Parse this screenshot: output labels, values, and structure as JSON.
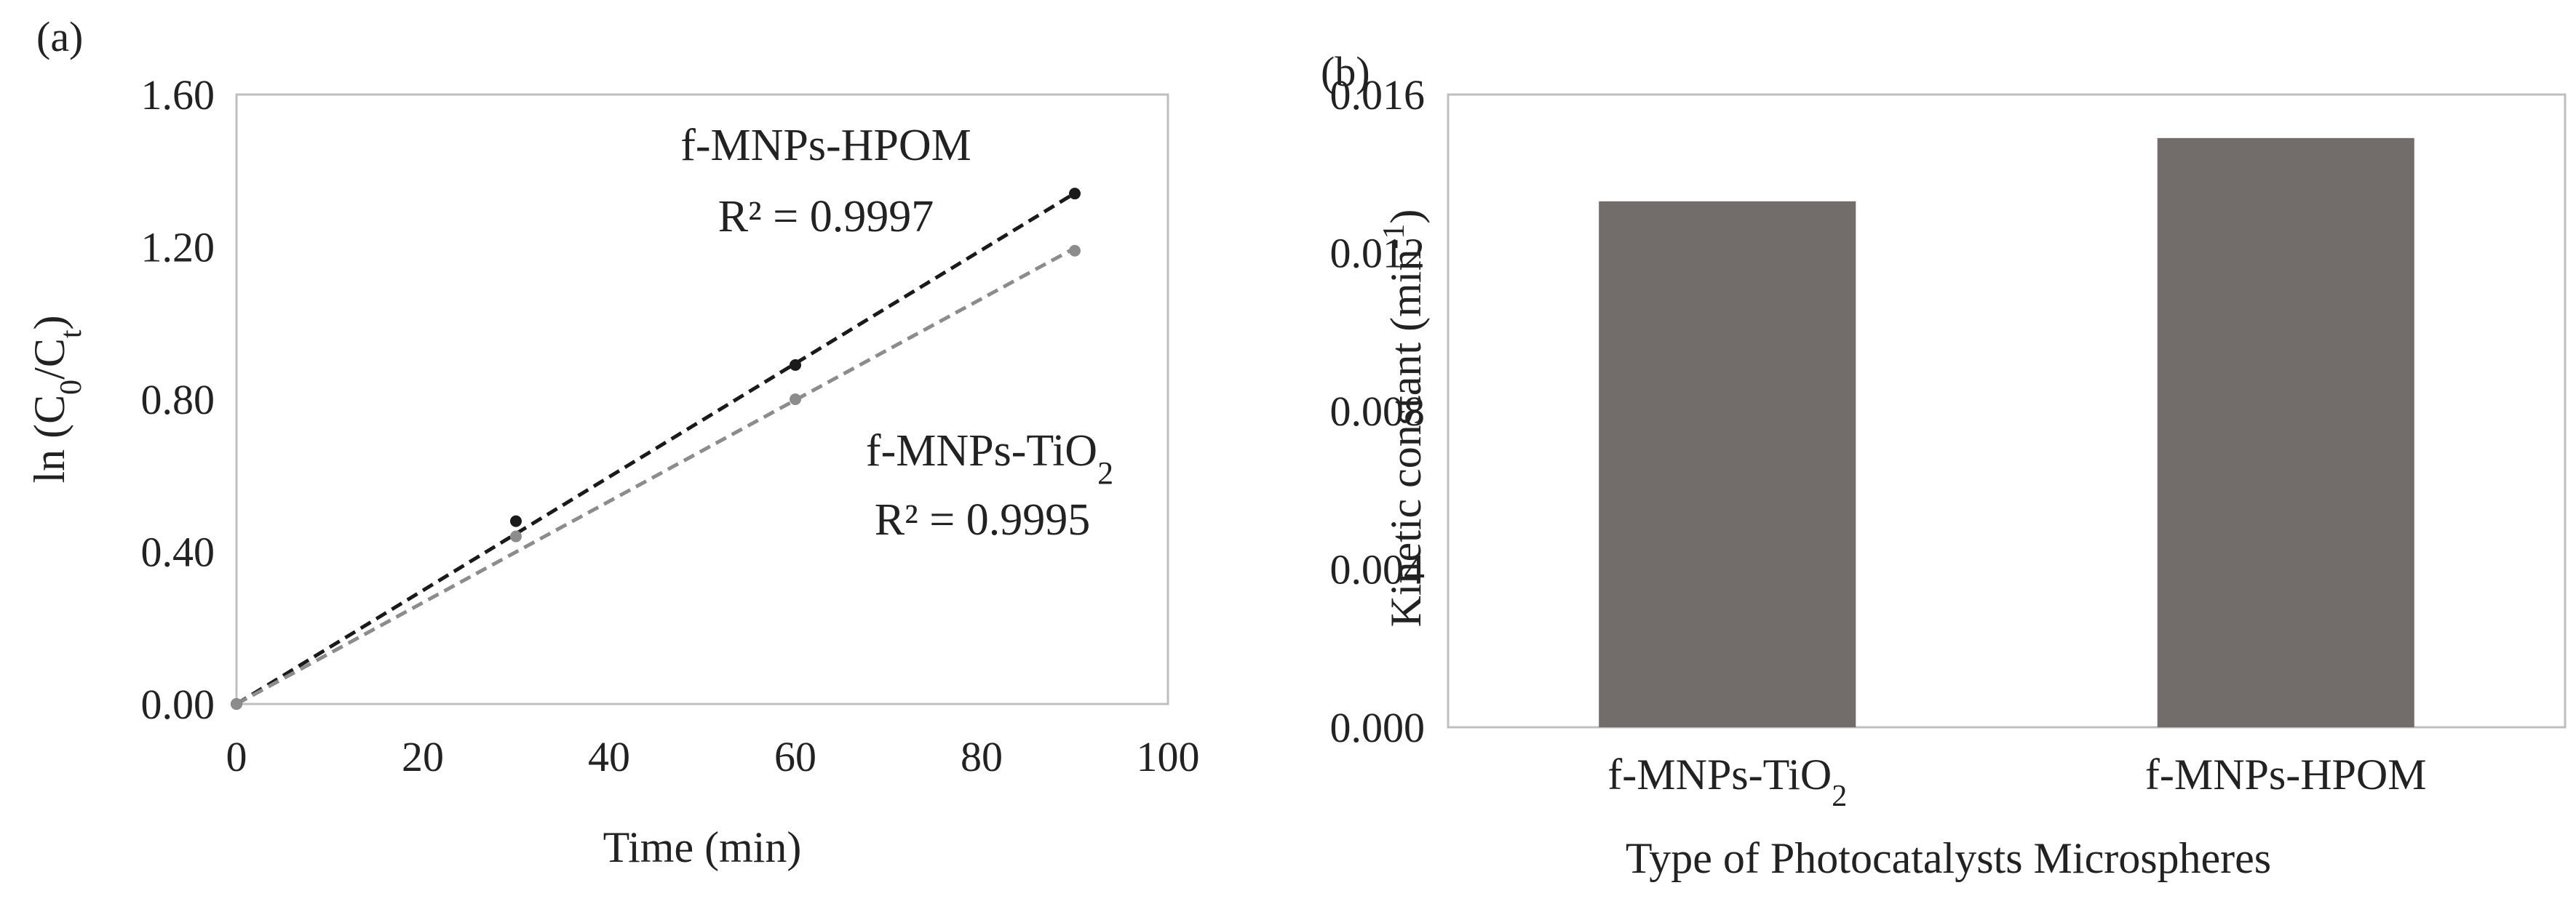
{
  "chart_data": [
    {
      "panel_label": "(a)",
      "type": "scatter",
      "xlabel": "Time (min)",
      "ylabel": {
        "prefix": "ln (C",
        "sub1": "0",
        "mid": "/C",
        "sub2": "t",
        "suffix": ")"
      },
      "xlim": [
        0,
        100
      ],
      "ylim": [
        0,
        1.6
      ],
      "xticks": [
        "0",
        "20",
        "40",
        "60",
        "80",
        "100"
      ],
      "yticks": [
        "0.00",
        "0.40",
        "0.80",
        "1.20",
        "1.60"
      ],
      "grid": false,
      "series": [
        {
          "name": "f-MNPs-HPOM",
          "name_parts": {
            "main": "f-MNPs-HPOM",
            "sub": ""
          },
          "r2": "R² = 0.9997",
          "x": [
            0,
            30,
            60,
            90
          ],
          "y": [
            0.0,
            0.48,
            0.89,
            1.34
          ],
          "color": "#1a1a1a",
          "trend": {
            "slope": 0.0149,
            "intercept": 0.0
          }
        },
        {
          "name": "f-MNPs-TiO2",
          "name_parts": {
            "main": "f-MNPs-TiO",
            "sub": "2"
          },
          "r2": "R² = 0.9995",
          "x": [
            0,
            30,
            60,
            90
          ],
          "y": [
            0.0,
            0.44,
            0.8,
            1.19
          ],
          "color": "#8c8c8c",
          "trend": {
            "slope": 0.0133,
            "intercept": 0.0
          }
        }
      ]
    },
    {
      "panel_label": "(b)",
      "type": "bar",
      "ylabel": {
        "main": "Kinetic constant (min",
        "sup": "-1",
        "suffix": ")"
      },
      "xlabel": "Type of Photocatalysts Microspheres",
      "categories": [
        {
          "main": "f-MNPs-TiO",
          "sub": "2"
        },
        {
          "main": "f-MNPs-HPOM",
          "sub": ""
        }
      ],
      "values": [
        0.0133,
        0.0149
      ],
      "ylim": [
        0,
        0.016
      ],
      "yticks": [
        "0.000",
        "0.004",
        "0.008",
        "0.012",
        "0.016"
      ],
      "bar_color": "#726c6b",
      "grid": false
    }
  ]
}
